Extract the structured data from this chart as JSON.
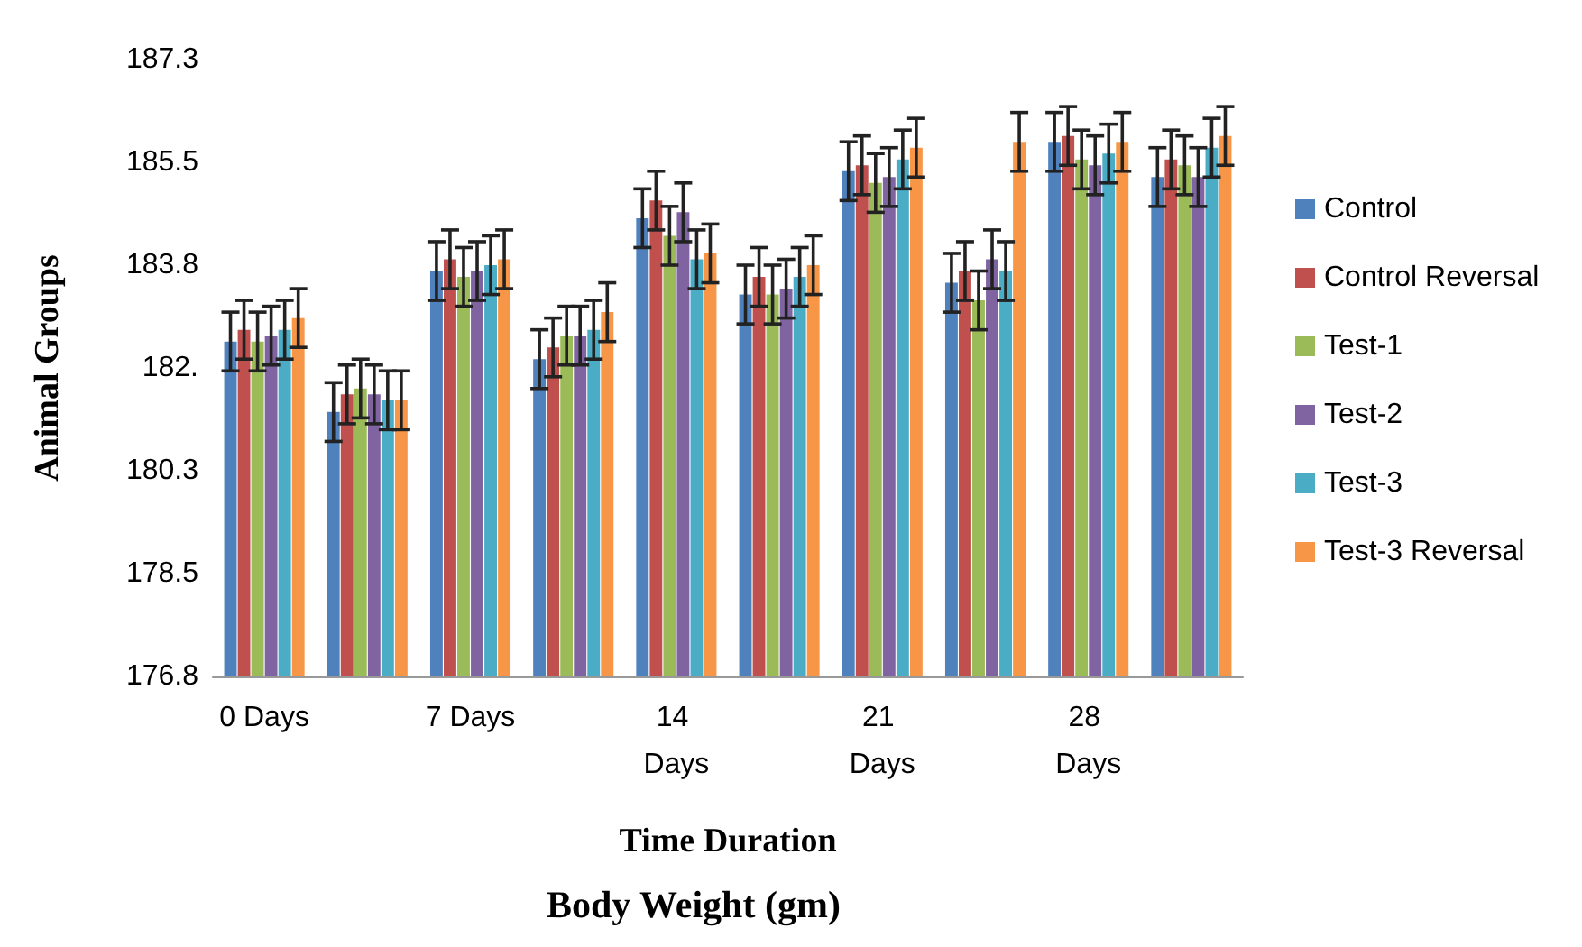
{
  "chart_data": {
    "type": "bar",
    "title": "Body Weight (gm)",
    "xlabel": "Time Duration",
    "ylabel": "Animal Groups",
    "categories": [
      "0 Days",
      null,
      "7 Days",
      null,
      "14 Days",
      null,
      "21 Days",
      null,
      "28 Days",
      null
    ],
    "series": [
      {
        "name": "Control",
        "color": "#4f81bd",
        "values": [
          182.5,
          181.3,
          183.7,
          182.2,
          184.6,
          183.3,
          185.4,
          183.5,
          185.9,
          185.3
        ],
        "errors": [
          0.5,
          0.5,
          0.5,
          0.5,
          0.5,
          0.5,
          0.5,
          0.5,
          0.5,
          0.5
        ]
      },
      {
        "name": "Control Reversal",
        "color": "#c0504d",
        "values": [
          182.7,
          181.6,
          183.9,
          182.4,
          184.9,
          183.6,
          185.5,
          183.7,
          186.0,
          185.6
        ],
        "errors": [
          0.5,
          0.5,
          0.5,
          0.5,
          0.5,
          0.5,
          0.5,
          0.5,
          0.5,
          0.5
        ]
      },
      {
        "name": "Test-1",
        "color": "#9bbb59",
        "values": [
          182.5,
          181.7,
          183.6,
          182.6,
          184.3,
          183.3,
          185.2,
          183.2,
          185.6,
          185.5
        ],
        "errors": [
          0.5,
          0.5,
          0.5,
          0.5,
          0.5,
          0.5,
          0.5,
          0.5,
          0.5,
          0.5
        ]
      },
      {
        "name": "Test-2",
        "color": "#8064a2",
        "values": [
          182.6,
          181.6,
          183.7,
          182.6,
          184.7,
          183.4,
          185.3,
          183.9,
          185.5,
          185.3
        ],
        "errors": [
          0.5,
          0.5,
          0.5,
          0.5,
          0.5,
          0.5,
          0.5,
          0.5,
          0.5,
          0.5
        ]
      },
      {
        "name": "Test-3",
        "color": "#4bacc6",
        "values": [
          182.7,
          181.5,
          183.8,
          182.7,
          183.9,
          183.6,
          185.6,
          183.7,
          185.7,
          185.8
        ],
        "errors": [
          0.5,
          0.5,
          0.5,
          0.5,
          0.5,
          0.5,
          0.5,
          0.5,
          0.5,
          0.5
        ]
      },
      {
        "name": "Test-3 Reversal",
        "color": "#f79646",
        "values": [
          182.9,
          181.5,
          183.9,
          183.0,
          184.0,
          183.8,
          185.8,
          185.9,
          185.9,
          186.0
        ],
        "errors": [
          0.5,
          0.5,
          0.5,
          0.5,
          0.5,
          0.5,
          0.5,
          0.5,
          0.5,
          0.5
        ]
      }
    ],
    "ylim": [
      176.8,
      187.3
    ],
    "yticks": [
      176.8,
      {
        "value": 178.55,
        "label": "178.5"
      },
      180.3,
      {
        "value": 182.05,
        "label": "182."
      },
      183.8,
      {
        "value": 185.55,
        "label": "185.5"
      },
      187.3
    ],
    "legend": "right"
  }
}
